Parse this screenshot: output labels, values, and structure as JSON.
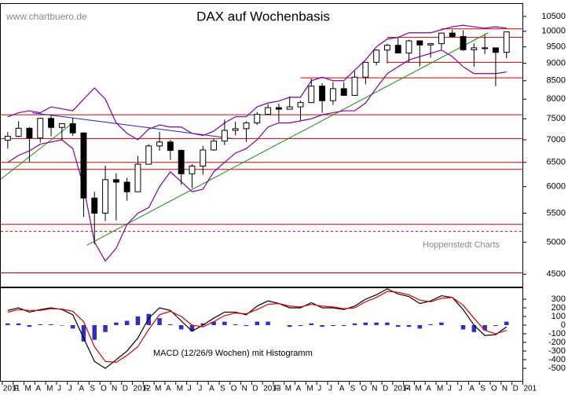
{
  "chart_data": [
    {
      "type": "candlestick",
      "title": "DAX auf Wochenbasis",
      "source": "www.chartbuero.de",
      "credit": "Hoppenstedt Charts",
      "log": true,
      "ylim": [
        4320,
        10940
      ],
      "yticks": [
        4500,
        5000,
        5500,
        6000,
        6500,
        7000,
        7500,
        8000,
        8500,
        9000,
        9500,
        10000,
        10500
      ],
      "xlim": [
        -0.14,
        48.04
      ],
      "xticks": [
        {
          "value": 0,
          "label": "2011"
        },
        {
          "value": 1,
          "label": "F"
        },
        {
          "value": 2,
          "label": "M"
        },
        {
          "value": 3,
          "label": "A"
        },
        {
          "value": 4,
          "label": "M"
        },
        {
          "value": 5,
          "label": "J"
        },
        {
          "value": 6,
          "label": "J"
        },
        {
          "value": 7,
          "label": "A"
        },
        {
          "value": 8,
          "label": "S"
        },
        {
          "value": 9,
          "label": "O"
        },
        {
          "value": 10,
          "label": "N"
        },
        {
          "value": 11,
          "label": "D"
        },
        {
          "value": 12,
          "label": "2012"
        },
        {
          "value": 13,
          "label": "F"
        },
        {
          "value": 14,
          "label": "M"
        },
        {
          "value": 15,
          "label": "A"
        },
        {
          "value": 16,
          "label": "M"
        },
        {
          "value": 17,
          "label": "J"
        },
        {
          "value": 18,
          "label": "J"
        },
        {
          "value": 19,
          "label": "A"
        },
        {
          "value": 20,
          "label": "S"
        },
        {
          "value": 21,
          "label": "O"
        },
        {
          "value": 22,
          "label": "N"
        },
        {
          "value": 23,
          "label": "D"
        },
        {
          "value": 24,
          "label": "2013"
        },
        {
          "value": 25,
          "label": "F"
        },
        {
          "value": 26,
          "label": "M"
        },
        {
          "value": 27,
          "label": "A"
        },
        {
          "value": 28,
          "label": "M"
        },
        {
          "value": 29,
          "label": "J"
        },
        {
          "value": 30,
          "label": "J"
        },
        {
          "value": 31,
          "label": "A"
        },
        {
          "value": 32,
          "label": "S"
        },
        {
          "value": 33,
          "label": "O"
        },
        {
          "value": 34,
          "label": "N"
        },
        {
          "value": 35,
          "label": "D"
        },
        {
          "value": 36,
          "label": "2014"
        },
        {
          "value": 37,
          "label": "F"
        },
        {
          "value": 38,
          "label": "M"
        },
        {
          "value": 39,
          "label": "A"
        },
        {
          "value": 40,
          "label": "M"
        },
        {
          "value": 41,
          "label": "J"
        },
        {
          "value": 42,
          "label": "J"
        },
        {
          "value": 43,
          "label": "A"
        },
        {
          "value": 44,
          "label": "S"
        },
        {
          "value": 45,
          "label": "O"
        },
        {
          "value": 46,
          "label": "N"
        },
        {
          "value": 47,
          "label": "D"
        },
        {
          "value": 48,
          "label": "201"
        }
      ],
      "open": [
        6990,
        7080,
        7270,
        7040,
        7510,
        7290,
        7380,
        7160,
        5780,
        5500,
        6140,
        6090,
        5900,
        6460,
        6860,
        6950,
        6760,
        6260,
        6420,
        6770,
        6970,
        7220,
        7260,
        7400,
        7610,
        7780,
        7740,
        7800,
        7910,
        8350,
        7960,
        8280,
        8100,
        8600,
        9030,
        9400,
        9550,
        9310,
        9690,
        9560,
        9600,
        9940,
        9830,
        9410,
        9470,
        9470,
        9330
      ],
      "high": [
        7180,
        7440,
        7300,
        7530,
        7600,
        7340,
        7520,
        7170,
        5900,
        6430,
        6270,
        6180,
        6640,
        6900,
        7190,
        7000,
        6780,
        6460,
        6860,
        7030,
        7480,
        7430,
        7440,
        7670,
        7870,
        7880,
        8070,
        7960,
        8560,
        8430,
        8460,
        8460,
        8770,
        9040,
        9420,
        9600,
        9790,
        9720,
        9700,
        9620,
        9960,
        10050,
        10030,
        9610,
        9890,
        9480,
        9980
      ],
      "low": [
        6800,
        7060,
        6510,
        6940,
        7080,
        6990,
        7090,
        5430,
        4970,
        5360,
        5370,
        5730,
        5900,
        6460,
        6750,
        6550,
        6040,
        5970,
        6240,
        6750,
        6880,
        7100,
        6950,
        7350,
        7600,
        7420,
        7780,
        7460,
        7900,
        7650,
        7850,
        8100,
        8100,
        8400,
        8940,
        9000,
        9300,
        9020,
        8910,
        9170,
        9420,
        9790,
        9380,
        8900,
        9280,
        8350,
        9150
      ],
      "close": [
        7080,
        7270,
        7040,
        7510,
        7290,
        7380,
        7160,
        5780,
        5500,
        6140,
        6090,
        5900,
        6460,
        6860,
        6950,
        6760,
        6260,
        6420,
        6770,
        6970,
        7220,
        7260,
        7400,
        7610,
        7780,
        7740,
        7800,
        7910,
        8350,
        7960,
        8280,
        8100,
        8600,
        9030,
        9400,
        9550,
        9310,
        9690,
        9560,
        9600,
        9940,
        9830,
        9410,
        9470,
        9470,
        9330,
        9980
      ],
      "bollinger": {
        "color": "#8000a0",
        "upper": [
          7550,
          7650,
          7700,
          7650,
          7800,
          7750,
          7700,
          8000,
          8300,
          8000,
          7400,
          7150,
          7000,
          7250,
          7350,
          7300,
          7300,
          7150,
          7100,
          7200,
          7400,
          7550,
          7550,
          7800,
          7900,
          7950,
          8050,
          8050,
          8500,
          8600,
          8500,
          8500,
          8800,
          9100,
          9500,
          9750,
          9800,
          9950,
          9950,
          9950,
          10050,
          10150,
          10200,
          10150,
          10100,
          10150,
          10100
        ],
        "lower": [
          6500,
          6650,
          6750,
          6900,
          6950,
          7000,
          6800,
          6000,
          5000,
          4700,
          4900,
          5300,
          5500,
          5600,
          6000,
          6300,
          6100,
          5900,
          5950,
          6300,
          6500,
          6700,
          6800,
          7000,
          7300,
          7400,
          7400,
          7450,
          7500,
          7600,
          7650,
          7700,
          7700,
          7900,
          8300,
          8700,
          8900,
          9100,
          9200,
          9300,
          9400,
          9200,
          8900,
          8700,
          8700,
          8700,
          8750
        ]
      },
      "levels": {
        "color": "#d00000",
        "lines": [
          {
            "value": 10080,
            "x0": 40.5
          },
          {
            "value": 9800,
            "x0": 35.5
          },
          {
            "value": 9030,
            "x0": 35.5
          },
          {
            "value": 8580,
            "x0": 27.5
          },
          {
            "value": 7600,
            "x0": -0.14
          },
          {
            "value": 7030,
            "x0": -0.14
          },
          {
            "value": 6500,
            "x0": -0.14
          },
          {
            "value": 6350,
            "x0": -0.14
          },
          {
            "value": 5300,
            "x0": -0.14
          },
          {
            "value": 5180,
            "x0": -0.14,
            "dashed": true
          },
          {
            "value": 4520,
            "x0": -0.14
          }
        ]
      },
      "trendlines": [
        {
          "color": "#2020c0",
          "x": [
            2.75,
            21.2
          ],
          "y": [
            7650,
            7030
          ]
        },
        {
          "color": "#109010",
          "x": [
            7.8,
            44.8
          ],
          "y": [
            4950,
            9950
          ]
        },
        {
          "color": "#109010",
          "x": [
            -0.14,
            6.5
          ],
          "y": [
            6150,
            7400
          ]
        }
      ]
    },
    {
      "type": "line",
      "annotation": "MACD (12/26/9 Wochen) mit Histogramm",
      "ylim": [
        -645,
        427
      ],
      "yticks": [
        300,
        200,
        100,
        0,
        -100,
        -200,
        -300,
        -400,
        -500
      ],
      "xlim": [
        -0.14,
        48.04
      ],
      "series": [
        {
          "color": "#000000",
          "values": [
            170,
            200,
            150,
            180,
            200,
            180,
            120,
            -150,
            -420,
            -500,
            -400,
            -300,
            -150,
            80,
            200,
            170,
            50,
            -70,
            0,
            80,
            150,
            150,
            120,
            220,
            280,
            250,
            200,
            200,
            260,
            200,
            200,
            180,
            220,
            300,
            350,
            420,
            360,
            330,
            250,
            280,
            340,
            320,
            180,
            0,
            -120,
            -110,
            -20
          ]
        },
        {
          "color": "#e00000",
          "values": [
            150,
            180,
            170,
            170,
            190,
            185,
            160,
            40,
            -250,
            -420,
            -430,
            -350,
            -250,
            -50,
            120,
            160,
            100,
            0,
            -20,
            40,
            110,
            140,
            130,
            180,
            240,
            250,
            220,
            210,
            240,
            220,
            210,
            190,
            200,
            270,
            320,
            390,
            380,
            350,
            290,
            270,
            310,
            320,
            230,
            80,
            -60,
            -100,
            -60
          ]
        }
      ],
      "histogram": {
        "color": "#3030c0",
        "values": [
          20,
          20,
          -20,
          10,
          10,
          -5,
          -40,
          -190,
          -170,
          -80,
          30,
          50,
          100,
          130,
          80,
          10,
          -50,
          -70,
          20,
          40,
          40,
          10,
          -10,
          40,
          40,
          0,
          -20,
          -10,
          20,
          -20,
          -10,
          -10,
          20,
          30,
          30,
          30,
          -20,
          -20,
          -40,
          10,
          30,
          0,
          -50,
          -80,
          -60,
          -10,
          40
        ]
      }
    }
  ]
}
